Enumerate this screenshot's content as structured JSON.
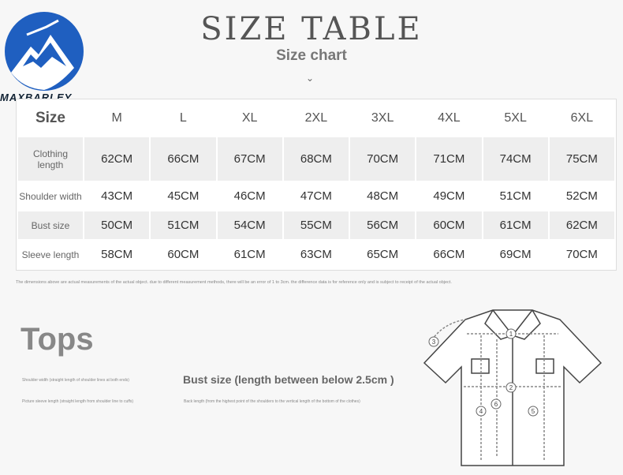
{
  "logo": {
    "text": "MAXBARLEY",
    "colors": {
      "circle": "#1f5fc0",
      "mountain": "#ffffff"
    }
  },
  "header": {
    "title": "SIZE TABLE",
    "subtitle": "Size chart",
    "chevron": "⌄"
  },
  "table": {
    "corner": "Size",
    "columns": [
      "M",
      "L",
      "XL",
      "2XL",
      "3XL",
      "4XL",
      "5XL",
      "6XL"
    ],
    "rows": [
      {
        "label": "Clothing length",
        "values": [
          "62CM",
          "66CM",
          "67CM",
          "68CM",
          "70CM",
          "71CM",
          "74CM",
          "75CM"
        ]
      },
      {
        "label": "Shoulder width",
        "values": [
          "43CM",
          "45CM",
          "46CM",
          "47CM",
          "48CM",
          "49CM",
          "51CM",
          "52CM"
        ]
      },
      {
        "label": "Bust size",
        "values": [
          "50CM",
          "51CM",
          "54CM",
          "55CM",
          "56CM",
          "60CM",
          "61CM",
          "62CM"
        ]
      },
      {
        "label": "Sleeve length",
        "values": [
          "58CM",
          "60CM",
          "61CM",
          "63CM",
          "65CM",
          "66CM",
          "69CM",
          "70CM"
        ]
      }
    ]
  },
  "note": "The dimensions above are actual measurements of the actual object. due to different measurement methods, there will be an error of 1 to 3cm. the difference data is for reference only and is subject to receipt of the actual object.",
  "tops": {
    "title": "Tops",
    "shoulder": "Shoulder width (straight length of shoulder lines at both ends)",
    "sleeve": "Picture sleeve length (straight length from shoulder line to cuffs)",
    "bust": "Bust size (length between below 2.5cm )",
    "back": "Back length (from the highest point of the shoulders to the vertical length of the bottom of the clothes)"
  },
  "diagram": {
    "markers": [
      "1",
      "2",
      "3",
      "4",
      "5",
      "6"
    ]
  }
}
